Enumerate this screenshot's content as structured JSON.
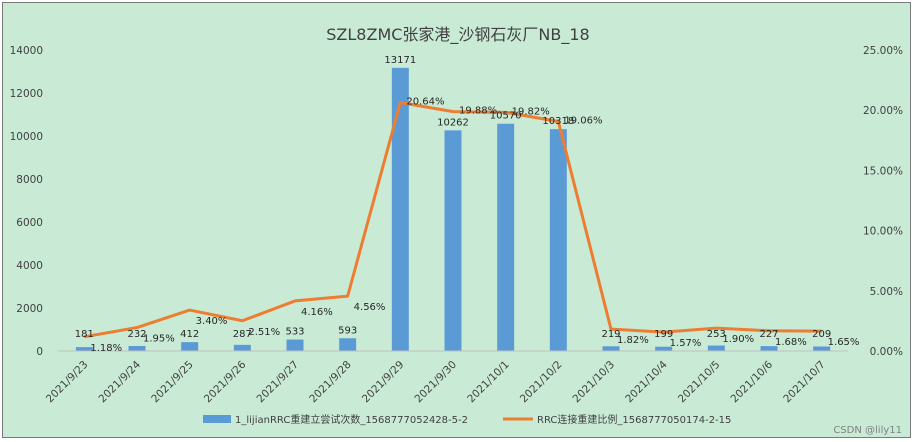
{
  "chart_data": {
    "type": "bar+line",
    "title": "SZL8ZMC张家港_沙钢石灰厂NB_18",
    "categories": [
      "2021/9/23",
      "2021/9/24",
      "2021/9/25",
      "2021/9/26",
      "2021/9/27",
      "2021/9/28",
      "2021/9/29",
      "2021/9/30",
      "2021/10/1",
      "2021/10/2",
      "2021/10/3",
      "2021/10/4",
      "2021/10/5",
      "2021/10/6",
      "2021/10/7"
    ],
    "series": [
      {
        "name": "1_lijianRRC重建立尝试次数_1568777052428-5-2",
        "type": "bar",
        "axis": "left",
        "color": "#5b9bd5",
        "values": [
          181,
          232,
          412,
          287,
          533,
          593,
          13171,
          10262,
          10570,
          10318,
          219,
          199,
          253,
          227,
          209
        ],
        "labels": [
          "181",
          "232",
          "412",
          "287",
          "533",
          "593",
          "13171",
          "10262",
          "10570",
          "10318",
          "219",
          "199",
          "253",
          "227",
          "209"
        ]
      },
      {
        "name": "RRC连接重建比例_1568777050174-2-15",
        "type": "line",
        "axis": "right",
        "color": "#ed7d31",
        "values": [
          1.18,
          1.95,
          3.4,
          2.51,
          4.16,
          4.56,
          20.64,
          19.88,
          19.82,
          19.06,
          1.82,
          1.57,
          1.9,
          1.68,
          1.65
        ],
        "labels": [
          "1.18%",
          "1.95%",
          "3.40%",
          "2.51%",
          "4.16%",
          "4.56%",
          "20.64%",
          "19.88%",
          "19.82%",
          "19.06%",
          "1.82%",
          "1.57%",
          "1.90%",
          "1.68%",
          "1.65%"
        ]
      }
    ],
    "y_left": {
      "ylim": [
        0,
        14000
      ],
      "ticks": [
        "0",
        "2000",
        "4000",
        "6000",
        "8000",
        "10000",
        "12000",
        "14000"
      ]
    },
    "y_right": {
      "ylim": [
        0,
        25
      ],
      "ticks": [
        "0.00%",
        "5.00%",
        "10.00%",
        "15.00%",
        "20.00%",
        "25.00%"
      ]
    },
    "grid": false,
    "legend_position": "bottom"
  },
  "watermark": "CSDN @lily11"
}
